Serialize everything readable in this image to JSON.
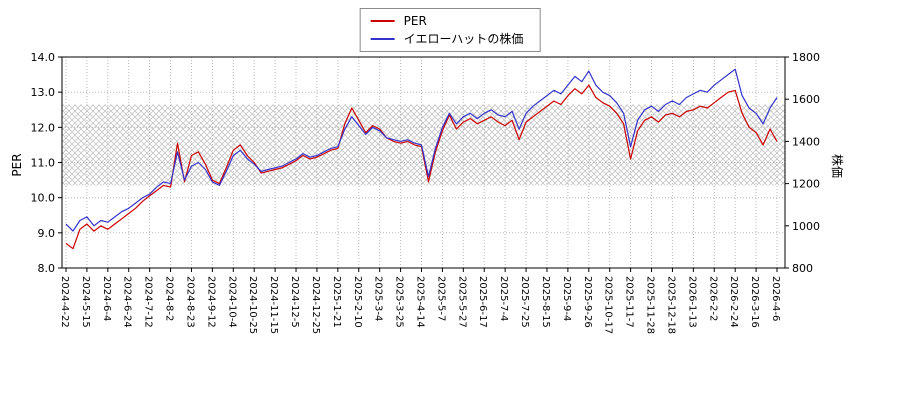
{
  "chart_data": {
    "type": "line",
    "title": "",
    "legend_position": "top-center",
    "grid": true,
    "left_axis": {
      "label": "PER",
      "min": 8.0,
      "max": 14.0,
      "ticks": [
        "8.0",
        "9.0",
        "10.0",
        "11.0",
        "12.0",
        "13.0",
        "14.0"
      ]
    },
    "right_axis": {
      "label": "株価",
      "min": 800,
      "max": 1800,
      "ticks": [
        "800",
        "1000",
        "1200",
        "1400",
        "1600",
        "1800"
      ]
    },
    "band": {
      "axis": "left",
      "from": 10.35,
      "to": 12.65,
      "style": "crosshatch",
      "color": "#c6c6c6"
    },
    "x_tick_labels": [
      "2024-4-22",
      "2024-5-15",
      "2024-6-4",
      "2024-6-24",
      "2024-7-12",
      "2024-8-2",
      "2024-8-23",
      "2024-9-12",
      "2024-10-4",
      "2024-10-25",
      "2024-11-15",
      "2024-12-5",
      "2024-12-25",
      "2025-1-21",
      "2025-2-10",
      "2025-3-4",
      "2025-3-25",
      "2025-4-14",
      "2025-5-7",
      "2025-5-27",
      "2025-6-17",
      "2025-7-4",
      "2025-7-25",
      "2025-8-15",
      "2025-9-4",
      "2025-9-26",
      "2025-10-17",
      "2025-11-7",
      "2025-11-28",
      "2025-12-18",
      "2026-1-13",
      "2026-2-2",
      "2026-2-24",
      "2026-3-16",
      "2026-4-6"
    ],
    "points_per_tick": 3,
    "series": [
      {
        "name": "PER",
        "axis": "left",
        "color": "#cc0000",
        "values": [
          8.7,
          8.55,
          9.1,
          9.25,
          9.05,
          9.2,
          9.1,
          9.25,
          9.4,
          9.55,
          9.7,
          9.9,
          10.05,
          10.2,
          10.35,
          10.3,
          11.55,
          10.45,
          11.2,
          11.3,
          10.95,
          10.5,
          10.4,
          10.85,
          11.35,
          11.5,
          11.2,
          11.0,
          10.7,
          10.75,
          10.8,
          10.85,
          10.95,
          11.05,
          11.2,
          11.1,
          11.15,
          11.25,
          11.35,
          11.4,
          12.1,
          12.55,
          12.2,
          11.85,
          12.05,
          11.95,
          11.7,
          11.6,
          11.55,
          11.6,
          11.5,
          11.45,
          10.45,
          11.3,
          11.9,
          12.35,
          11.95,
          12.15,
          12.25,
          12.1,
          12.2,
          12.3,
          12.15,
          12.05,
          12.2,
          11.65,
          12.15,
          12.3,
          12.45,
          12.6,
          12.75,
          12.65,
          12.9,
          13.1,
          12.95,
          13.2,
          12.85,
          12.7,
          12.6,
          12.4,
          12.1,
          11.1,
          11.9,
          12.2,
          12.3,
          12.15,
          12.35,
          12.4,
          12.3,
          12.45,
          12.5,
          12.6,
          12.55,
          12.7,
          12.85,
          13.0,
          13.05,
          12.4,
          12.0,
          11.85,
          11.5,
          11.95,
          11.6
        ]
      },
      {
        "name": "イエローハットの株価",
        "axis": "right",
        "color": "#3333cc",
        "values": [
          1008,
          975,
          1025,
          1042,
          1000,
          1025,
          1017,
          1042,
          1067,
          1083,
          1108,
          1133,
          1150,
          1183,
          1208,
          1200,
          1350,
          1217,
          1283,
          1300,
          1267,
          1208,
          1192,
          1258,
          1333,
          1358,
          1317,
          1292,
          1258,
          1267,
          1275,
          1283,
          1300,
          1317,
          1342,
          1325,
          1333,
          1350,
          1367,
          1375,
          1458,
          1517,
          1475,
          1433,
          1467,
          1450,
          1417,
          1408,
          1400,
          1408,
          1392,
          1383,
          1233,
          1367,
          1467,
          1533,
          1483,
          1517,
          1533,
          1508,
          1533,
          1550,
          1525,
          1517,
          1542,
          1458,
          1533,
          1567,
          1592,
          1617,
          1642,
          1625,
          1667,
          1708,
          1683,
          1733,
          1667,
          1633,
          1617,
          1583,
          1533,
          1375,
          1500,
          1550,
          1567,
          1542,
          1575,
          1592,
          1575,
          1608,
          1625,
          1642,
          1633,
          1667,
          1692,
          1717,
          1742,
          1617,
          1558,
          1533,
          1483,
          1558,
          1608
        ]
      }
    ]
  }
}
